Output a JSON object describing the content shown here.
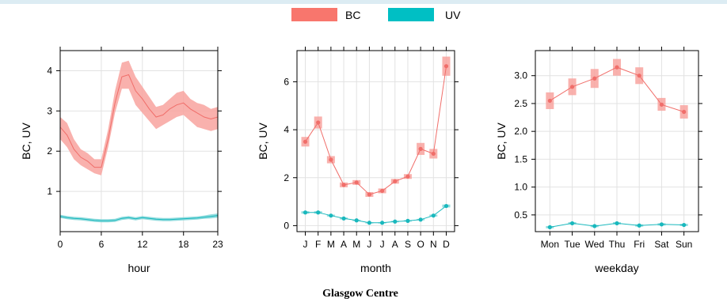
{
  "colors": {
    "bc_band": "#f8a39f",
    "bc_line": "#f06e6a",
    "uv_band": "#7fd6d8",
    "uv_line": "#19b8bd",
    "grid": "#e2e2e2",
    "frame": "#000000"
  },
  "legend": [
    {
      "label": "BC",
      "color": "#f8766d"
    },
    {
      "label": "UV",
      "color": "#00bfc4"
    }
  ],
  "caption": "Glasgow Centre",
  "chart_data": [
    {
      "type": "line",
      "xlabel": "hour",
      "ylabel": "BC, UV",
      "xlim": [
        0,
        23
      ],
      "ylim": [
        0,
        4.5
      ],
      "x_ticks": [
        0,
        6,
        12,
        18,
        23
      ],
      "y_ticks": [
        1,
        2,
        3,
        4
      ],
      "x": [
        0,
        1,
        2,
        3,
        4,
        5,
        6,
        7,
        8,
        9,
        10,
        11,
        12,
        13,
        14,
        15,
        16,
        17,
        18,
        19,
        20,
        21,
        22,
        23
      ],
      "series": [
        {
          "name": "BC",
          "values": [
            2.6,
            2.4,
            2.05,
            1.85,
            1.75,
            1.6,
            1.6,
            2.3,
            3.2,
            3.85,
            3.9,
            3.5,
            3.3,
            3.05,
            2.85,
            2.9,
            3.05,
            3.15,
            3.2,
            3.05,
            2.95,
            2.85,
            2.8,
            2.85
          ],
          "lower": [
            2.3,
            2.1,
            1.8,
            1.65,
            1.55,
            1.45,
            1.4,
            2.1,
            2.95,
            3.55,
            3.55,
            3.15,
            2.95,
            2.75,
            2.55,
            2.65,
            2.75,
            2.85,
            2.9,
            2.75,
            2.6,
            2.55,
            2.5,
            2.55
          ],
          "upper": [
            2.85,
            2.7,
            2.3,
            2.05,
            1.95,
            1.8,
            1.8,
            2.55,
            3.5,
            4.2,
            4.25,
            3.85,
            3.6,
            3.35,
            3.1,
            3.15,
            3.3,
            3.45,
            3.5,
            3.3,
            3.2,
            3.15,
            3.05,
            3.1
          ]
        },
        {
          "name": "UV",
          "values": [
            0.38,
            0.35,
            0.33,
            0.32,
            0.3,
            0.28,
            0.27,
            0.27,
            0.28,
            0.33,
            0.35,
            0.32,
            0.35,
            0.33,
            0.31,
            0.3,
            0.3,
            0.31,
            0.32,
            0.33,
            0.34,
            0.36,
            0.38,
            0.4
          ],
          "lower": [
            0.34,
            0.31,
            0.29,
            0.28,
            0.26,
            0.24,
            0.23,
            0.23,
            0.24,
            0.29,
            0.31,
            0.28,
            0.31,
            0.29,
            0.27,
            0.26,
            0.26,
            0.27,
            0.28,
            0.29,
            0.3,
            0.32,
            0.33,
            0.35
          ],
          "upper": [
            0.42,
            0.39,
            0.37,
            0.36,
            0.34,
            0.32,
            0.31,
            0.31,
            0.32,
            0.37,
            0.39,
            0.36,
            0.39,
            0.37,
            0.35,
            0.34,
            0.34,
            0.35,
            0.36,
            0.37,
            0.38,
            0.4,
            0.43,
            0.45
          ]
        }
      ]
    },
    {
      "type": "line",
      "xlabel": "month",
      "ylabel": "BC, UV",
      "ylim": [
        -0.25,
        7.3
      ],
      "categories": [
        "J",
        "F",
        "M",
        "A",
        "M",
        "J",
        "J",
        "A",
        "S",
        "O",
        "N",
        "D"
      ],
      "y_ticks": [
        0,
        2,
        4,
        6
      ],
      "series": [
        {
          "name": "BC",
          "values": [
            3.5,
            4.3,
            2.75,
            1.7,
            1.8,
            1.3,
            1.45,
            1.85,
            2.05,
            3.2,
            3.0,
            6.65
          ],
          "lower": [
            3.3,
            4.05,
            2.6,
            1.6,
            1.7,
            1.2,
            1.35,
            1.75,
            1.95,
            2.95,
            2.8,
            6.25
          ],
          "upper": [
            3.7,
            4.55,
            2.9,
            1.8,
            1.9,
            1.4,
            1.55,
            1.95,
            2.15,
            3.45,
            3.2,
            7.05
          ]
        },
        {
          "name": "UV",
          "values": [
            0.55,
            0.55,
            0.42,
            0.3,
            0.22,
            0.12,
            0.12,
            0.17,
            0.2,
            0.25,
            0.42,
            0.82
          ],
          "lower": [
            0.5,
            0.5,
            0.38,
            0.26,
            0.19,
            0.1,
            0.1,
            0.14,
            0.17,
            0.22,
            0.38,
            0.76
          ],
          "upper": [
            0.6,
            0.6,
            0.46,
            0.34,
            0.25,
            0.14,
            0.14,
            0.2,
            0.23,
            0.28,
            0.46,
            0.88
          ]
        }
      ]
    },
    {
      "type": "line",
      "xlabel": "weekday",
      "ylabel": "BC, UV",
      "ylim": [
        0.2,
        3.45
      ],
      "categories": [
        "Mon",
        "Tue",
        "Wed",
        "Thu",
        "Fri",
        "Sat",
        "Sun"
      ],
      "y_ticks": [
        0.5,
        1.0,
        1.5,
        2.0,
        2.5,
        3.0
      ],
      "y_tick_labels": [
        "0.5",
        "1.0",
        "1.5",
        "2.0",
        "2.5",
        "3.0"
      ],
      "series": [
        {
          "name": "BC",
          "values": [
            2.55,
            2.8,
            2.95,
            3.15,
            3.0,
            2.48,
            2.35
          ],
          "lower": [
            2.4,
            2.65,
            2.78,
            3.0,
            2.85,
            2.37,
            2.23
          ],
          "upper": [
            2.7,
            2.95,
            3.12,
            3.3,
            3.15,
            2.6,
            2.47
          ]
        },
        {
          "name": "UV",
          "values": [
            0.28,
            0.35,
            0.3,
            0.35,
            0.31,
            0.33,
            0.32
          ],
          "lower": [
            0.26,
            0.33,
            0.28,
            0.33,
            0.29,
            0.31,
            0.3
          ],
          "upper": [
            0.3,
            0.37,
            0.32,
            0.37,
            0.33,
            0.35,
            0.34
          ]
        }
      ]
    }
  ]
}
